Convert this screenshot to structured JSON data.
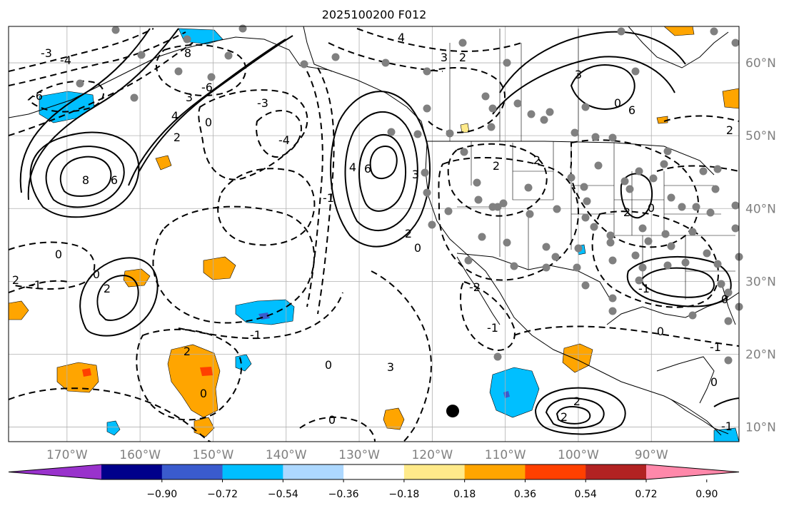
{
  "title": "2025100200 F012",
  "map": {
    "lon_ticks": [
      "170°W",
      "160°W",
      "150°W",
      "140°W",
      "130°W",
      "120°W",
      "110°W",
      "100°W",
      "90°W"
    ],
    "lon_values": [
      -170,
      -160,
      -150,
      -140,
      -130,
      -120,
      -110,
      -100,
      -90
    ],
    "lat_ticks": [
      "10°N",
      "20°N",
      "30°N",
      "40°N",
      "50°N",
      "60°N"
    ],
    "lat_values": [
      10,
      20,
      30,
      40,
      50,
      60
    ],
    "lon_range": [
      -178,
      -78
    ],
    "lat_range": [
      8,
      65
    ],
    "grid": true,
    "label_color": "#808080",
    "marker": {
      "name": "center-point",
      "lon": -117.2,
      "lat": 12.2,
      "color": "#000000"
    },
    "contour_labels": [
      "-6",
      "-4",
      "-3",
      "-2",
      "-1",
      "0",
      "2",
      "3",
      "4",
      "6",
      "8"
    ]
  },
  "colorbar": {
    "tick_labels": [
      "−0.90",
      "−0.72",
      "−0.54",
      "−0.36",
      "−0.18",
      "0.18",
      "0.36",
      "0.54",
      "0.72",
      "0.90"
    ],
    "bins": [
      {
        "color": "#9932cc",
        "extend": "min"
      },
      {
        "color": "#00008b"
      },
      {
        "color": "#3a5bcd"
      },
      {
        "color": "#00bfff"
      },
      {
        "color": "#add8ff"
      },
      {
        "color": "#ffffff"
      },
      {
        "color": "#ffea8a"
      },
      {
        "color": "#ffa500"
      },
      {
        "color": "#ff4000"
      },
      {
        "color": "#b22222"
      },
      {
        "color": "#ff88aa",
        "extend": "max"
      }
    ]
  }
}
